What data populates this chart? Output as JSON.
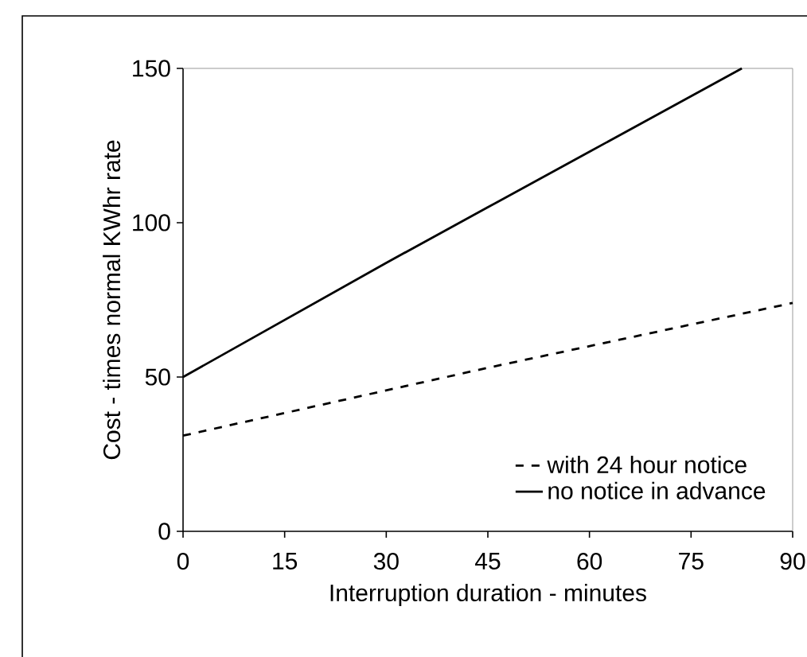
{
  "chart_data": {
    "type": "line",
    "xlabel": "Interruption duration - minutes",
    "ylabel": "Cost - times normal KWhr rate",
    "xlim": [
      0,
      90
    ],
    "ylim": [
      0,
      150
    ],
    "xticks": [
      0,
      15,
      30,
      45,
      60,
      75,
      90
    ],
    "yticks": [
      0,
      50,
      100,
      150
    ],
    "grid": false,
    "legend": "bottom right",
    "marker": "none",
    "series": [
      {
        "name": "with 24 hour notice",
        "color": "#000000",
        "line_style": "dashed",
        "x": [
          0,
          45,
          90
        ],
        "values": [
          31,
          53,
          74
        ]
      },
      {
        "name": "no notice in advance",
        "color": "#000000",
        "line_style": "solid",
        "x": [
          0,
          30,
          45,
          60,
          82.5
        ],
        "values": [
          50,
          87,
          105,
          123,
          150
        ]
      }
    ]
  }
}
